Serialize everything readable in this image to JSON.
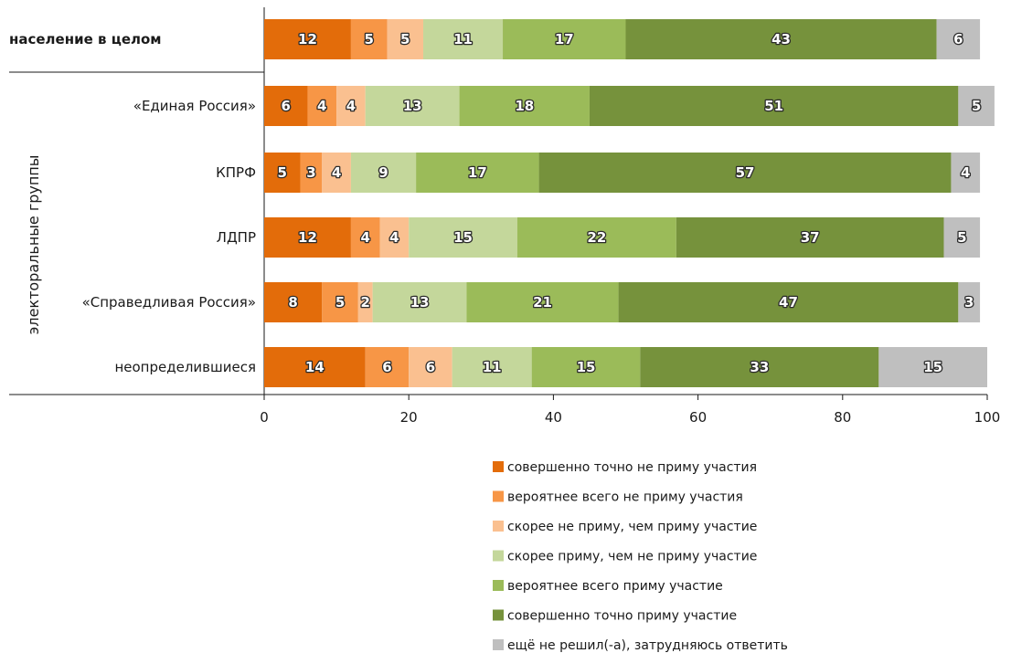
{
  "chart_data": {
    "type": "bar",
    "orientation": "horizontal",
    "stacked": true,
    "group_label": "электоральные группы",
    "categories": [
      "население в целом",
      "«Единая Россия»",
      "КПРФ",
      "ЛДПР",
      "«Справедливая Россия»",
      "неопределившиеся"
    ],
    "bold_categories": [
      "население в целом"
    ],
    "series": [
      {
        "name": "совершенно точно не приму участия",
        "color": "#e36c0a",
        "values": [
          12,
          6,
          5,
          12,
          8,
          14
        ]
      },
      {
        "name": "вероятнее всего не приму участия",
        "color": "#f79646",
        "values": [
          5,
          4,
          3,
          4,
          5,
          6
        ]
      },
      {
        "name": "скорее не приму, чем приму участие",
        "color": "#fac090",
        "values": [
          5,
          4,
          4,
          4,
          2,
          6
        ]
      },
      {
        "name": "скорее приму, чем не приму участие",
        "color": "#c4d79b",
        "values": [
          11,
          13,
          9,
          15,
          13,
          11
        ]
      },
      {
        "name": "вероятнее всего приму участие",
        "color": "#9bbb59",
        "values": [
          17,
          18,
          17,
          22,
          21,
          15
        ]
      },
      {
        "name": "совершенно точно приму участие",
        "color": "#76923c",
        "values": [
          43,
          51,
          57,
          37,
          47,
          33
        ]
      },
      {
        "name": "ещё не решил(-а), затрудняюсь ответить",
        "color": "#bfbfbf",
        "values": [
          6,
          5,
          4,
          5,
          3,
          15
        ]
      }
    ],
    "xlim": [
      0,
      100
    ],
    "xticks": [
      "0",
      "20",
      "40",
      "60",
      "80",
      "100"
    ],
    "grid": false,
    "legend_position": "bottom"
  }
}
